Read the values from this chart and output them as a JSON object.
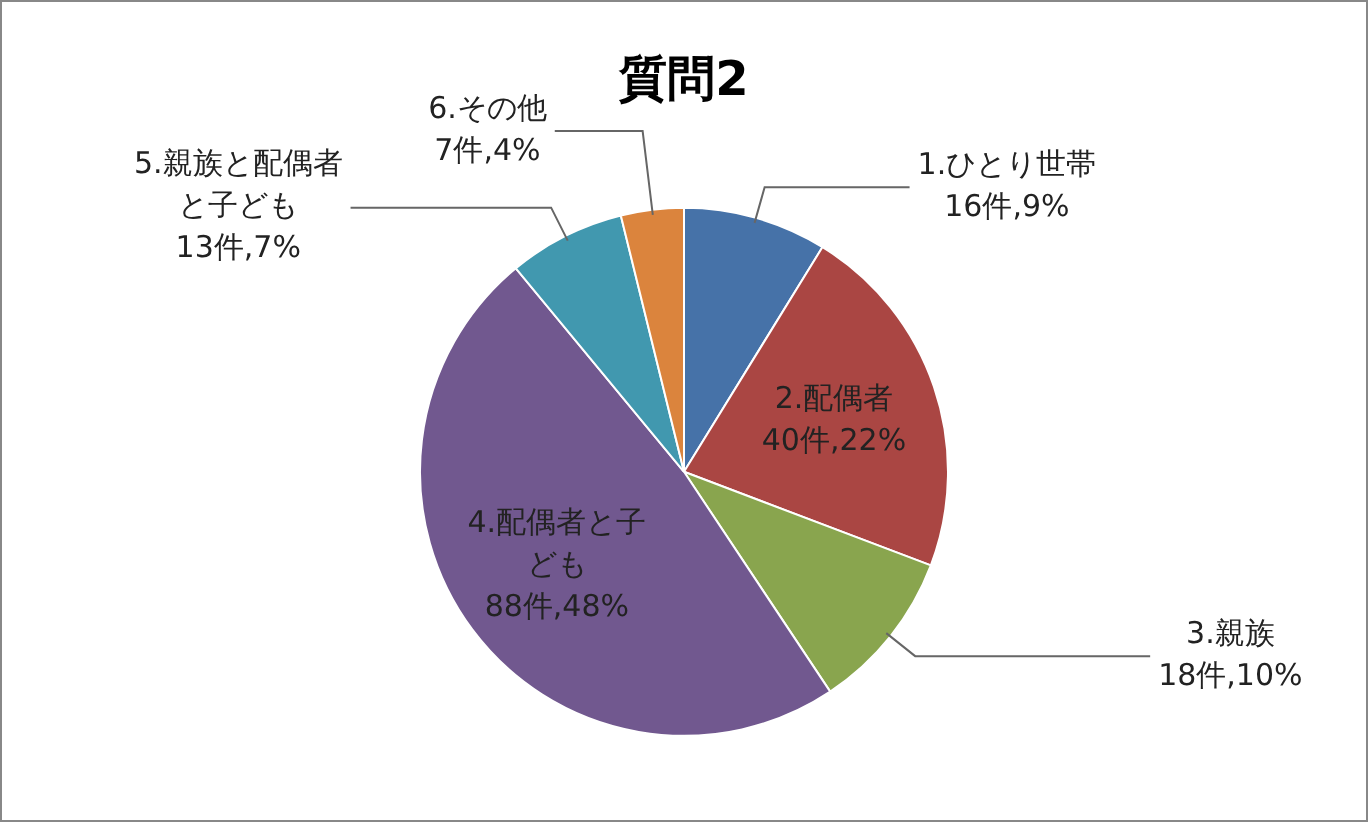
{
  "chart_data": {
    "type": "pie",
    "title": "質問2",
    "categories": [
      "1.ひとり世帯",
      "2.配偶者",
      "3.親族",
      "4.配偶者と子ども",
      "5.親族と配偶者と子ども",
      "6.その他"
    ],
    "values": [
      16,
      40,
      18,
      88,
      13,
      7
    ],
    "value_labels": [
      "16件,9%",
      "40件,22%",
      "18件,10%",
      "88件,48%",
      "13件,7%",
      "7件,4%"
    ],
    "colors": [
      "#4672a8",
      "#aa4643",
      "#89a54e",
      "#71588f",
      "#4198af",
      "#db843d"
    ],
    "legend": false
  }
}
